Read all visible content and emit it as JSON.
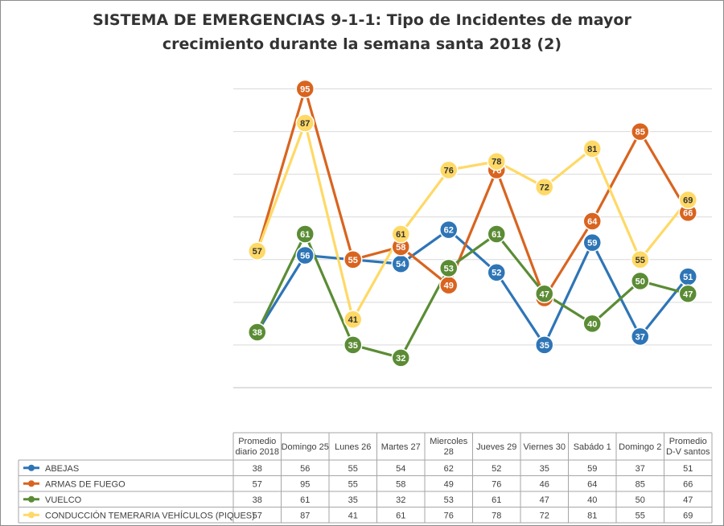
{
  "chart_data": {
    "type": "line",
    "title_lines": [
      "SISTEMA DE EMERGENCIAS 9-1-1: Tipo de Incidentes de mayor",
      "crecimiento durante la semana santa 2018 (2)"
    ],
    "categories": [
      [
        "Promedio",
        "diario 2018"
      ],
      [
        "Domingo 25"
      ],
      [
        "Lunes 26"
      ],
      [
        "Martes 27"
      ],
      [
        "Miercoles",
        "28"
      ],
      [
        "Jueves 29"
      ],
      [
        "Viernes 30"
      ],
      [
        "Sabádo 1"
      ],
      [
        "Domingo 2"
      ],
      [
        "Promedio",
        "D-V santos"
      ]
    ],
    "ylim": [
      25,
      100
    ],
    "grid": true,
    "legend_placement": "data-table",
    "series": [
      {
        "name": "ABEJAS",
        "color": "#2e75b6",
        "values": [
          38,
          56,
          55,
          54,
          62,
          52,
          35,
          59,
          37,
          51
        ]
      },
      {
        "name": "ARMAS DE FUEGO",
        "color": "#d9641f",
        "values": [
          57,
          95,
          55,
          58,
          49,
          76,
          46,
          64,
          85,
          66
        ]
      },
      {
        "name": "VUELCO",
        "color": "#5b8c35",
        "values": [
          38,
          61,
          35,
          32,
          53,
          61,
          47,
          40,
          50,
          47
        ]
      },
      {
        "name": "CONDUCCIÓN TEMERARIA VEHÍCULOS (PIQUES)",
        "color": "#ffd966",
        "values": [
          57,
          87,
          41,
          61,
          76,
          78,
          72,
          81,
          55,
          69
        ]
      }
    ]
  }
}
